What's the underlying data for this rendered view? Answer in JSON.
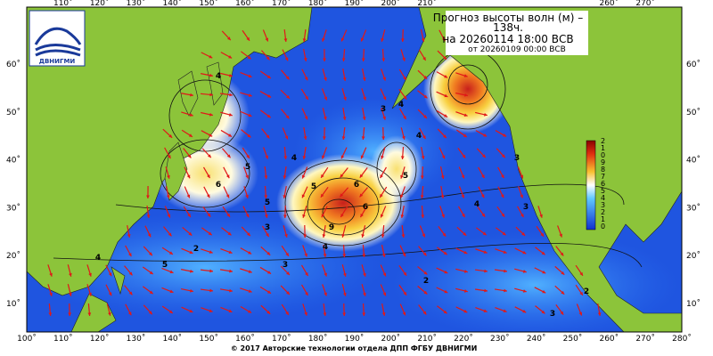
{
  "title": {
    "line1": "Прогноз высоты волн (м) –",
    "line2": "138ч.",
    "line3": "на 20260114 18:00 ВСВ",
    "line4": "от 20260109 00:00 ВСВ"
  },
  "logo": "ДВНИГМИ",
  "longitudes": [
    "100˚",
    "110˚",
    "120˚",
    "130˚",
    "140˚",
    "150˚",
    "160˚",
    "170˚",
    "180˚",
    "190˚",
    "200˚",
    "210˚",
    "220˚",
    "230˚",
    "240˚",
    "250˚",
    "260˚",
    "270˚",
    "280˚"
  ],
  "latitudes": [
    "60˚",
    "50˚",
    "40˚",
    "30˚",
    "20˚",
    "10˚"
  ],
  "colorbar": [
    "2",
    "1",
    "0",
    "9",
    "8",
    "7",
    "6",
    "5",
    "4",
    "3",
    "2",
    "1",
    "0"
  ],
  "contour_labels": [
    "4",
    "5",
    "6",
    "5",
    "4",
    "3",
    "2",
    "5",
    "6",
    "9",
    "6",
    "5",
    "4",
    "4",
    "3",
    "2",
    "3",
    "4",
    "3",
    "2",
    "4",
    "5",
    "3",
    "2",
    "3",
    "4"
  ],
  "footer": "© 2017 Авторские технологии отдела ДПП ФГБУ ДВНИГМИ"
}
